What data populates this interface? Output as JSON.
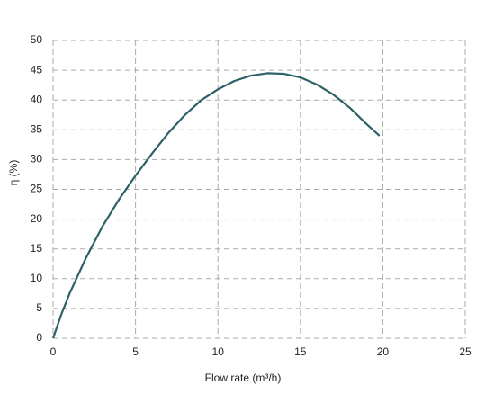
{
  "chart_data": {
    "type": "line",
    "x_label": "Flow rate (m³/h)",
    "y_label": "η (%)",
    "series": [
      {
        "color": "#2e6068",
        "x": [
          0,
          0.5,
          1,
          2,
          3,
          4,
          5,
          6,
          7,
          8,
          9,
          10,
          11,
          12,
          13,
          14,
          15,
          16,
          17,
          18,
          19,
          19.8
        ],
        "values": [
          0,
          4,
          7.5,
          13.5,
          18.8,
          23.3,
          27.3,
          31,
          34.5,
          37.5,
          40,
          41.8,
          43.2,
          44.1,
          44.5,
          44.4,
          43.8,
          42.6,
          40.9,
          38.7,
          36,
          34
        ]
      }
    ],
    "xlim": [
      0,
      25
    ],
    "xticks": [
      0,
      5,
      10,
      15,
      20,
      25
    ],
    "ylim": [
      0,
      50
    ],
    "yticks": [
      0,
      5,
      10,
      15,
      20,
      25,
      30,
      35,
      40,
      45,
      50
    ],
    "grid": true
  }
}
